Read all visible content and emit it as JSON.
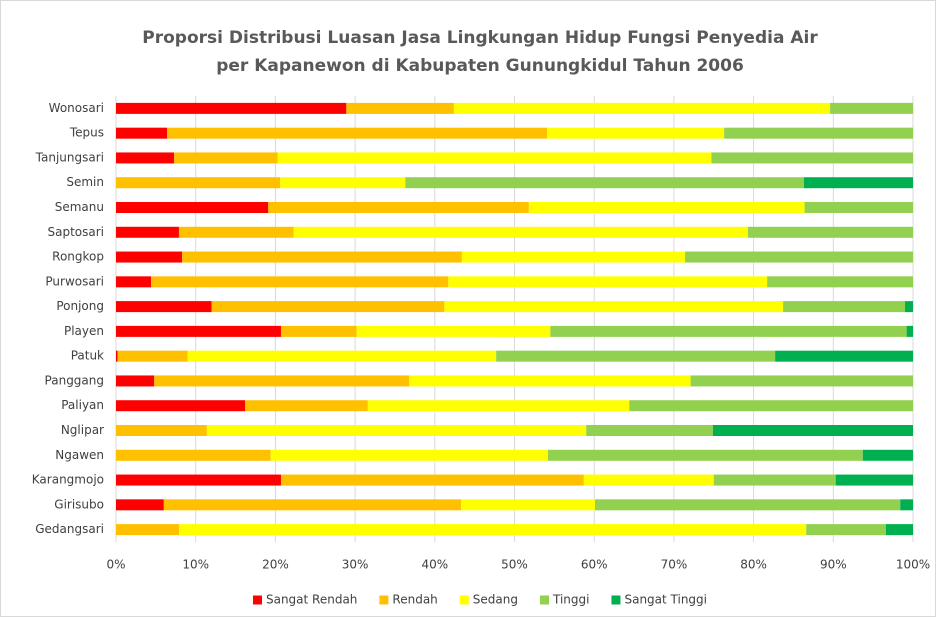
{
  "chart_data": {
    "type": "bar",
    "orientation": "horizontal",
    "stacked": true,
    "title": [
      "Proporsi Distribusi Luasan Jasa Lingkungan Hidup Fungsi Penyedia Air",
      "per Kapanewon di Kabupaten Gunungkidul Tahun 2006"
    ],
    "categories": [
      "Wonosari",
      "Tepus",
      "Tanjungsari",
      "Semin",
      "Semanu",
      "Saptosari",
      "Rongkop",
      "Purwosari",
      "Ponjong",
      "Playen",
      "Patuk",
      "Panggang",
      "Paliyan",
      "Nglipar",
      "Ngawen",
      "Karangmojo",
      "Girisubo",
      "Gedangsari"
    ],
    "series": [
      {
        "name": "Sangat Rendah",
        "color": "#ff0000",
        "values": [
          28.9,
          6.4,
          7.3,
          0,
          19.1,
          7.9,
          8.3,
          4.4,
          12.0,
          20.7,
          0.2,
          4.8,
          16.2,
          0,
          0,
          20.7,
          6.0,
          0
        ]
      },
      {
        "name": "Rendah",
        "color": "#ffc000",
        "values": [
          13.5,
          47.7,
          13.0,
          20.6,
          32.7,
          14.4,
          35.1,
          37.3,
          29.2,
          9.5,
          8.8,
          32.0,
          15.4,
          11.4,
          19.4,
          38.0,
          37.3,
          7.9
        ]
      },
      {
        "name": "Sedang",
        "color": "#ffff00",
        "values": [
          47.2,
          22.2,
          54.4,
          15.7,
          34.6,
          57.0,
          28.0,
          40.0,
          42.5,
          24.3,
          38.7,
          35.3,
          32.8,
          47.6,
          34.8,
          16.3,
          16.8,
          78.7
        ]
      },
      {
        "name": "Tinggi",
        "color": "#92d050",
        "values": [
          10.4,
          23.7,
          25.3,
          50.0,
          13.6,
          20.7,
          28.6,
          18.3,
          15.3,
          44.7,
          35.0,
          27.9,
          35.6,
          15.9,
          39.5,
          15.3,
          38.3,
          10.0
        ]
      },
      {
        "name": "Sangat Tinggi",
        "color": "#00b050",
        "values": [
          0,
          0,
          0,
          13.7,
          0,
          0,
          0,
          0,
          1.0,
          0.8,
          17.3,
          0,
          0,
          25.1,
          6.3,
          9.7,
          1.6,
          3.4
        ]
      }
    ],
    "xlim": [
      0,
      100
    ],
    "xticks": [
      {
        "value": 0,
        "label": "0%"
      },
      {
        "value": 10,
        "label": "10%"
      },
      {
        "value": 20,
        "label": "20%"
      },
      {
        "value": 30,
        "label": "30%"
      },
      {
        "value": 40,
        "label": "40%"
      },
      {
        "value": 50,
        "label": "50%"
      },
      {
        "value": 60,
        "label": "60%"
      },
      {
        "value": 70,
        "label": "70%"
      },
      {
        "value": 80,
        "label": "80%"
      },
      {
        "value": 90,
        "label": "90%"
      },
      {
        "value": 100,
        "label": "100%"
      }
    ],
    "grid": true,
    "legend": "bottom"
  }
}
